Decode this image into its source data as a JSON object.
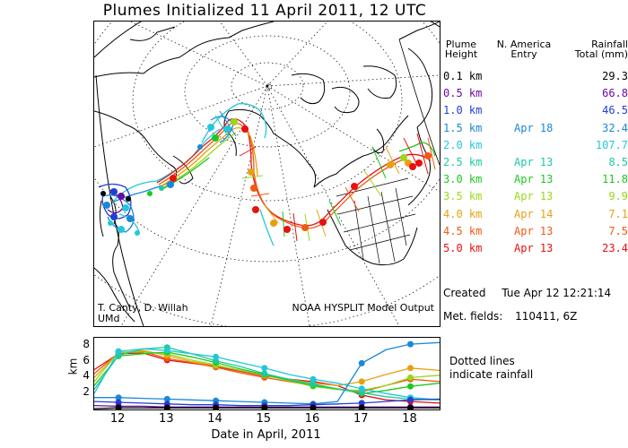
{
  "title": "Plumes Initialized 11 April 2011, 12 UTC",
  "map": {
    "credit_name": "T. Canty, D. Willah",
    "credit_org": "UMd",
    "source": "NOAA HYSPLIT Model Output"
  },
  "legend": {
    "header_height": [
      "Plume",
      "Height"
    ],
    "header_entry": [
      "N. America",
      "Entry"
    ],
    "header_rain": [
      "Rainfall",
      "Total (mm)"
    ],
    "rows": [
      {
        "height": "0.1 km",
        "entry": "",
        "rain": "29.3",
        "color": "#000000"
      },
      {
        "height": "0.5 km",
        "entry": "",
        "rain": "66.8",
        "color": "#6a0aa8"
      },
      {
        "height": "1.0 km",
        "entry": "",
        "rain": "46.5",
        "color": "#1f3fd8"
      },
      {
        "height": "1.5 km",
        "entry": "Apr 18",
        "rain": "32.4",
        "color": "#1a88d8"
      },
      {
        "height": "2.0 km",
        "entry": "",
        "rain": "107.7",
        "color": "#22c8d8"
      },
      {
        "height": "2.5 km",
        "entry": "Apr 13",
        "rain": "8.5",
        "color": "#1fc8a0"
      },
      {
        "height": "3.0 km",
        "entry": "Apr 13",
        "rain": "11.8",
        "color": "#1ec81e"
      },
      {
        "height": "3.5 km",
        "entry": "Apr 13",
        "rain": "9.9",
        "color": "#98d818"
      },
      {
        "height": "4.0 km",
        "entry": "Apr 14",
        "rain": "7.1",
        "color": "#e8a010"
      },
      {
        "height": "4.5 km",
        "entry": "Apr 13",
        "rain": "7.5",
        "color": "#f05a10"
      },
      {
        "height": "5.0 km",
        "entry": "Apr 13",
        "rain": "23.4",
        "color": "#e81010"
      }
    ]
  },
  "info": {
    "created_label": "Created",
    "created_value": "Tue Apr 12 12:21:14",
    "met_label": "Met. fields:",
    "met_value": "110411, 6Z"
  },
  "timeline": {
    "ylabel": "km",
    "yticks": [
      "8",
      "6",
      "4",
      "2"
    ],
    "xticks": [
      "12",
      "13",
      "14",
      "15",
      "16",
      "17",
      "18"
    ],
    "xlabel": "Date in April, 2011",
    "note_line1": "Dotted lines",
    "note_line2": "indicate rainfall"
  },
  "chart_data": {
    "type": "line",
    "xlabel": "Date in April, 2011",
    "ylabel": "km",
    "ylim": [
      0,
      9
    ],
    "xlim": [
      11.5,
      18.6
    ],
    "x": [
      11.5,
      12,
      12.5,
      13,
      13.5,
      14,
      14.5,
      15,
      15.5,
      16,
      16.5,
      17,
      17.5,
      18,
      18.6
    ],
    "series": [
      {
        "name": "5.0 km",
        "color": "#e81010",
        "values": [
          5.0,
          7.0,
          7.1,
          6.2,
          5.8,
          5.4,
          4.8,
          4.2,
          3.8,
          3.5,
          3.0,
          1.8,
          1.2,
          1.0,
          0.8
        ]
      },
      {
        "name": "4.5 km",
        "color": "#f05a10",
        "values": [
          4.5,
          7.1,
          7.3,
          6.4,
          5.9,
          5.3,
          4.6,
          4.0,
          3.5,
          3.0,
          2.6,
          2.2,
          3.0,
          3.8,
          3.5
        ]
      },
      {
        "name": "4.0 km",
        "color": "#e8a010",
        "values": [
          4.0,
          7.1,
          7.4,
          6.8,
          6.0,
          5.5,
          4.9,
          4.3,
          3.8,
          3.3,
          3.0,
          3.5,
          4.4,
          5.2,
          4.9
        ]
      },
      {
        "name": "3.5 km",
        "color": "#98d818",
        "values": [
          3.5,
          7.2,
          7.2,
          7.0,
          6.2,
          5.6,
          4.9,
          4.3,
          3.6,
          2.9,
          2.5,
          2.4,
          3.0,
          4.0,
          4.3
        ]
      },
      {
        "name": "3.0 km",
        "color": "#1ec81e",
        "values": [
          3.0,
          6.7,
          7.0,
          7.2,
          6.6,
          5.9,
          5.1,
          4.4,
          3.7,
          3.0,
          2.6,
          2.0,
          2.4,
          2.9,
          3.3
        ]
      },
      {
        "name": "2.5 km",
        "color": "#1fc8a0",
        "values": [
          2.5,
          6.8,
          7.6,
          7.8,
          7.0,
          6.1,
          5.4,
          4.5,
          3.8,
          3.2,
          2.6,
          2.1,
          1.6,
          1.3,
          1.2
        ]
      },
      {
        "name": "2.0 km",
        "color": "#22c8d8",
        "values": [
          2.0,
          7.3,
          7.6,
          7.4,
          7.0,
          6.6,
          5.9,
          5.2,
          4.4,
          3.8,
          3.3,
          2.6,
          2.0,
          1.5,
          1.2
        ]
      },
      {
        "name": "1.5 km",
        "color": "#1a88d8",
        "values": [
          1.5,
          1.5,
          1.4,
          1.3,
          1.2,
          1.1,
          1.0,
          0.9,
          0.8,
          0.7,
          1.0,
          5.8,
          7.5,
          8.2,
          8.4
        ]
      },
      {
        "name": "1.0 km",
        "color": "#1f3fd8",
        "values": [
          1.0,
          0.9,
          0.8,
          0.7,
          0.6,
          0.6,
          0.5,
          0.5,
          0.5,
          0.6,
          0.7,
          0.8,
          1.0,
          1.2,
          1.3
        ]
      },
      {
        "name": "0.5 km",
        "color": "#6a0aa8",
        "values": [
          0.5,
          0.4,
          0.4,
          0.3,
          0.3,
          0.3,
          0.3,
          0.3,
          0.3,
          0.3,
          0.3,
          0.3,
          0.3,
          0.3,
          0.3
        ]
      },
      {
        "name": "0.1 km",
        "color": "#000000",
        "values": [
          0.1,
          0.2,
          0.2,
          0.2,
          0.2,
          0.2,
          0.2,
          0.2,
          0.2,
          0.2,
          0.2,
          0.2,
          0.2,
          0.2,
          0.2
        ]
      }
    ]
  }
}
